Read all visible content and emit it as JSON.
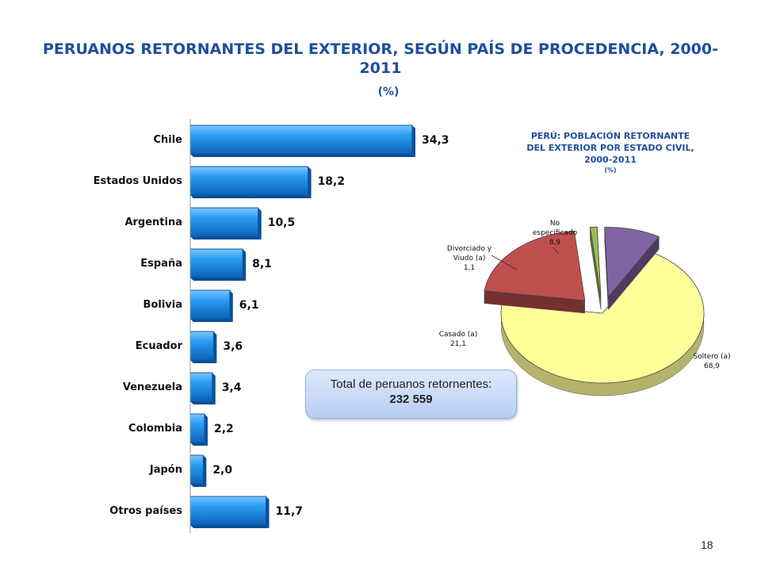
{
  "title": "PERUANOS RETORNANTES DEL EXTERIOR, SEGÚN PAÍS DE PROCEDENCIA, 2000-2011",
  "subtitle": "(%)",
  "chart_data": [
    {
      "type": "bar",
      "orientation": "horizontal",
      "categories": [
        "Chile",
        "Estados Unidos",
        "Argentina",
        "España",
        "Bolivia",
        "Ecuador",
        "Venezuela",
        "Colombia",
        "Japón",
        "Otros países"
      ],
      "values": [
        34.3,
        18.2,
        10.5,
        8.1,
        6.1,
        3.6,
        3.4,
        2.2,
        2.0,
        11.7
      ],
      "data_labels": [
        "34,3",
        "18,2",
        "10,5",
        "8,1",
        "6,1",
        "3,6",
        "3,4",
        "2,2",
        "2,0",
        "11,7"
      ],
      "xlim": [
        0,
        40
      ],
      "grid": false,
      "color": "#1c8de6"
    },
    {
      "type": "pie",
      "title_lines": [
        "PERÚ: POBLACIÓN RETORNANTE",
        "DEL EXTERIOR POR ESTADO CIVIL,",
        "2000-2011"
      ],
      "subtitle": "(%)",
      "slices": [
        {
          "label_lines": [
            "Soltero (a)",
            "68,9"
          ],
          "value": 68.9,
          "color": "#ffff99"
        },
        {
          "label_lines": [
            "Casado (a)",
            "21,1"
          ],
          "value": 21.1,
          "color": "#c0504d"
        },
        {
          "label_lines": [
            "Divorciado y",
            "Viudo (a)",
            "1,1"
          ],
          "value": 1.1,
          "color": "#9bbb59"
        },
        {
          "label_lines": [
            "No",
            "especificado",
            "8,9"
          ],
          "value": 8.9,
          "color": "#8064a2"
        }
      ]
    }
  ],
  "total_box": {
    "label": "Total de peruanos retornentes:",
    "value": "232 559"
  },
  "page_number": "18"
}
